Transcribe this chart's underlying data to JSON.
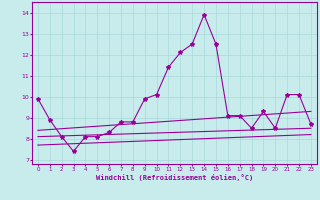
{
  "xlabel": "Windchill (Refroidissement éolien,°C)",
  "ylabel": "",
  "bg_color": "#c8ecec",
  "grid_color": "#a8d8d8",
  "line_color": "#990099",
  "x_ticks": [
    0,
    1,
    2,
    3,
    4,
    5,
    6,
    7,
    8,
    9,
    10,
    11,
    12,
    13,
    14,
    15,
    16,
    17,
    18,
    19,
    20,
    21,
    22,
    23
  ],
  "y_ticks": [
    7,
    8,
    9,
    10,
    11,
    12,
    13,
    14
  ],
  "ylim": [
    6.8,
    14.5
  ],
  "xlim": [
    -0.5,
    23.5
  ],
  "lines": [
    {
      "x": [
        0,
        1,
        2,
        3,
        4,
        5,
        6,
        7,
        8,
        9,
        10,
        11,
        12,
        13,
        14,
        15,
        16,
        17,
        18,
        19,
        20,
        21,
        22,
        23
      ],
      "y": [
        9.9,
        8.9,
        8.1,
        7.4,
        8.1,
        8.1,
        8.3,
        8.8,
        8.8,
        9.9,
        10.1,
        11.4,
        12.1,
        12.5,
        13.9,
        12.5,
        9.1,
        9.1,
        8.5,
        9.3,
        8.5,
        10.1,
        10.1,
        8.7
      ],
      "marker": "*",
      "markersize": 3,
      "linewidth": 0.8
    },
    {
      "x": [
        0,
        23
      ],
      "y": [
        8.1,
        8.5
      ],
      "marker": null,
      "linewidth": 0.8
    },
    {
      "x": [
        0,
        23
      ],
      "y": [
        7.7,
        8.2
      ],
      "marker": null,
      "linewidth": 0.8
    },
    {
      "x": [
        0,
        23
      ],
      "y": [
        8.4,
        9.3
      ],
      "marker": null,
      "linewidth": 0.8
    }
  ]
}
